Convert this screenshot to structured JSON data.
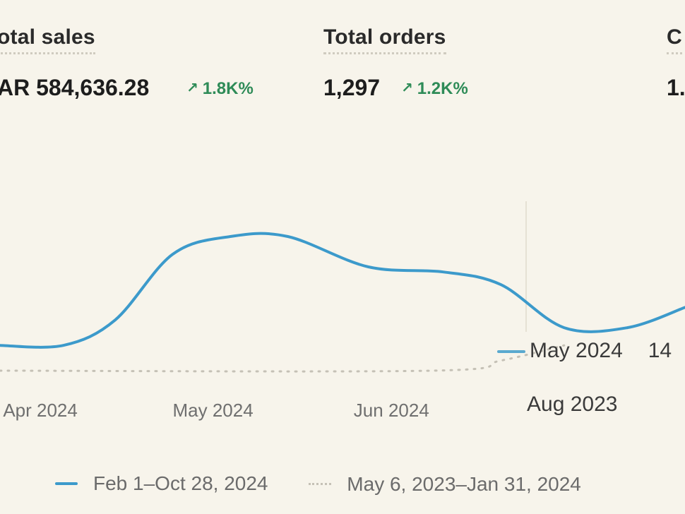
{
  "metrics": [
    {
      "label": "otal sales",
      "value": "AR 584,636.28",
      "change": "1.8K%"
    },
    {
      "label": "Total orders",
      "value": "1,297",
      "change": "1.2K%"
    },
    {
      "label": "C",
      "value": "1."
    }
  ],
  "icons": {
    "change_arrow": "arrow-up-right-icon"
  },
  "colors": {
    "current_series": "#3c9acb",
    "comparison_series": "#c5c1b6",
    "positive_change": "#2e8b57",
    "background": "#f7f4eb"
  },
  "chart_data": {
    "type": "line",
    "x_ticks": [
      "Apr 2024",
      "May 2024",
      "Jun 2024"
    ],
    "series": [
      {
        "name": "Feb 1–Oct 28, 2024",
        "style": "solid",
        "points": [
          {
            "x": "2024-03-25",
            "y": 0.1
          },
          {
            "x": "2024-04-05",
            "y": 0.1
          },
          {
            "x": "2024-04-14",
            "y": 0.2
          },
          {
            "x": "2024-04-24",
            "y": 0.46
          },
          {
            "x": "2024-05-04",
            "y": 0.53
          },
          {
            "x": "2024-05-14",
            "y": 0.53
          },
          {
            "x": "2024-05-28",
            "y": 0.41
          },
          {
            "x": "2024-06-10",
            "y": 0.39
          },
          {
            "x": "2024-06-20",
            "y": 0.34
          },
          {
            "x": "2024-07-01",
            "y": 0.17
          },
          {
            "x": "2024-07-12",
            "y": 0.17
          },
          {
            "x": "2024-07-22",
            "y": 0.25
          }
        ]
      },
      {
        "name": "May 6, 2023–Jan 31, 2024",
        "style": "dotted",
        "points": [
          {
            "x": "2024-03-25",
            "y": 0.0
          },
          {
            "x": "2024-06-08",
            "y": 0.0
          },
          {
            "x": "2024-06-20",
            "y": 0.04
          },
          {
            "x": "2024-07-01",
            "y": 0.1
          }
        ]
      }
    ],
    "tooltip": {
      "primary_label": "May 2024",
      "primary_value": "14",
      "secondary_label": "Aug 2023"
    },
    "legend_position": "bottom",
    "grid": false
  },
  "legend": {
    "current": "Feb 1–Oct 28, 2024",
    "comparison": "May 6, 2023–Jan 31, 2024"
  }
}
